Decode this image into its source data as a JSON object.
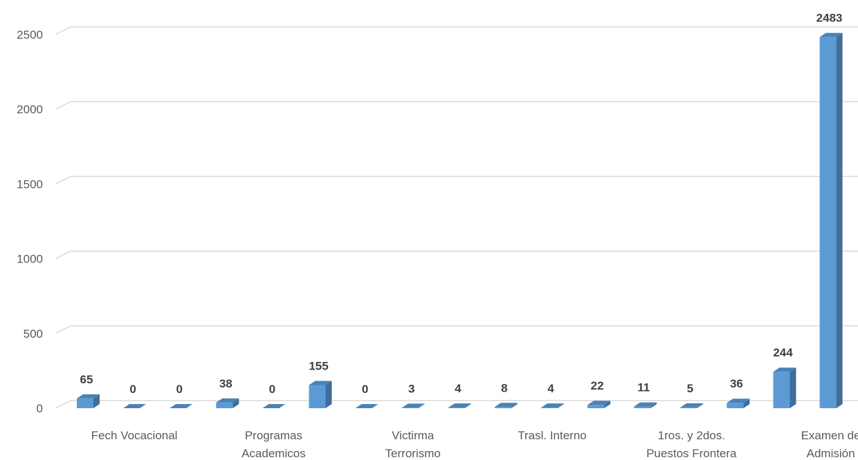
{
  "chart_data": {
    "type": "bar",
    "title": "",
    "xlabel": "",
    "ylabel": "",
    "ylim": [
      0,
      2500
    ],
    "yticks": [
      0,
      500,
      1000,
      1500,
      2000,
      2500
    ],
    "grid": true,
    "three_d": true,
    "bar_color": "#5b9bd5",
    "bar_side_color": "#3f6e99",
    "bar_top_color": "#4a82b6",
    "values": [
      65,
      0,
      0,
      38,
      0,
      155,
      0,
      3,
      4,
      8,
      4,
      22,
      11,
      5,
      36,
      244,
      2483
    ],
    "category_labels": [
      {
        "lines": [
          "Fech Vocacional"
        ]
      },
      {
        "lines": [
          "Programas",
          "Academicos"
        ]
      },
      {
        "lines": [
          "Victirma",
          "Terrorismo"
        ]
      },
      {
        "lines": [
          "Trasl. Interno"
        ]
      },
      {
        "lines": [
          "1ros. y 2dos.",
          "Puestos Frontera"
        ]
      },
      {
        "lines": [
          "Examen de",
          "Admisión"
        ]
      }
    ]
  }
}
